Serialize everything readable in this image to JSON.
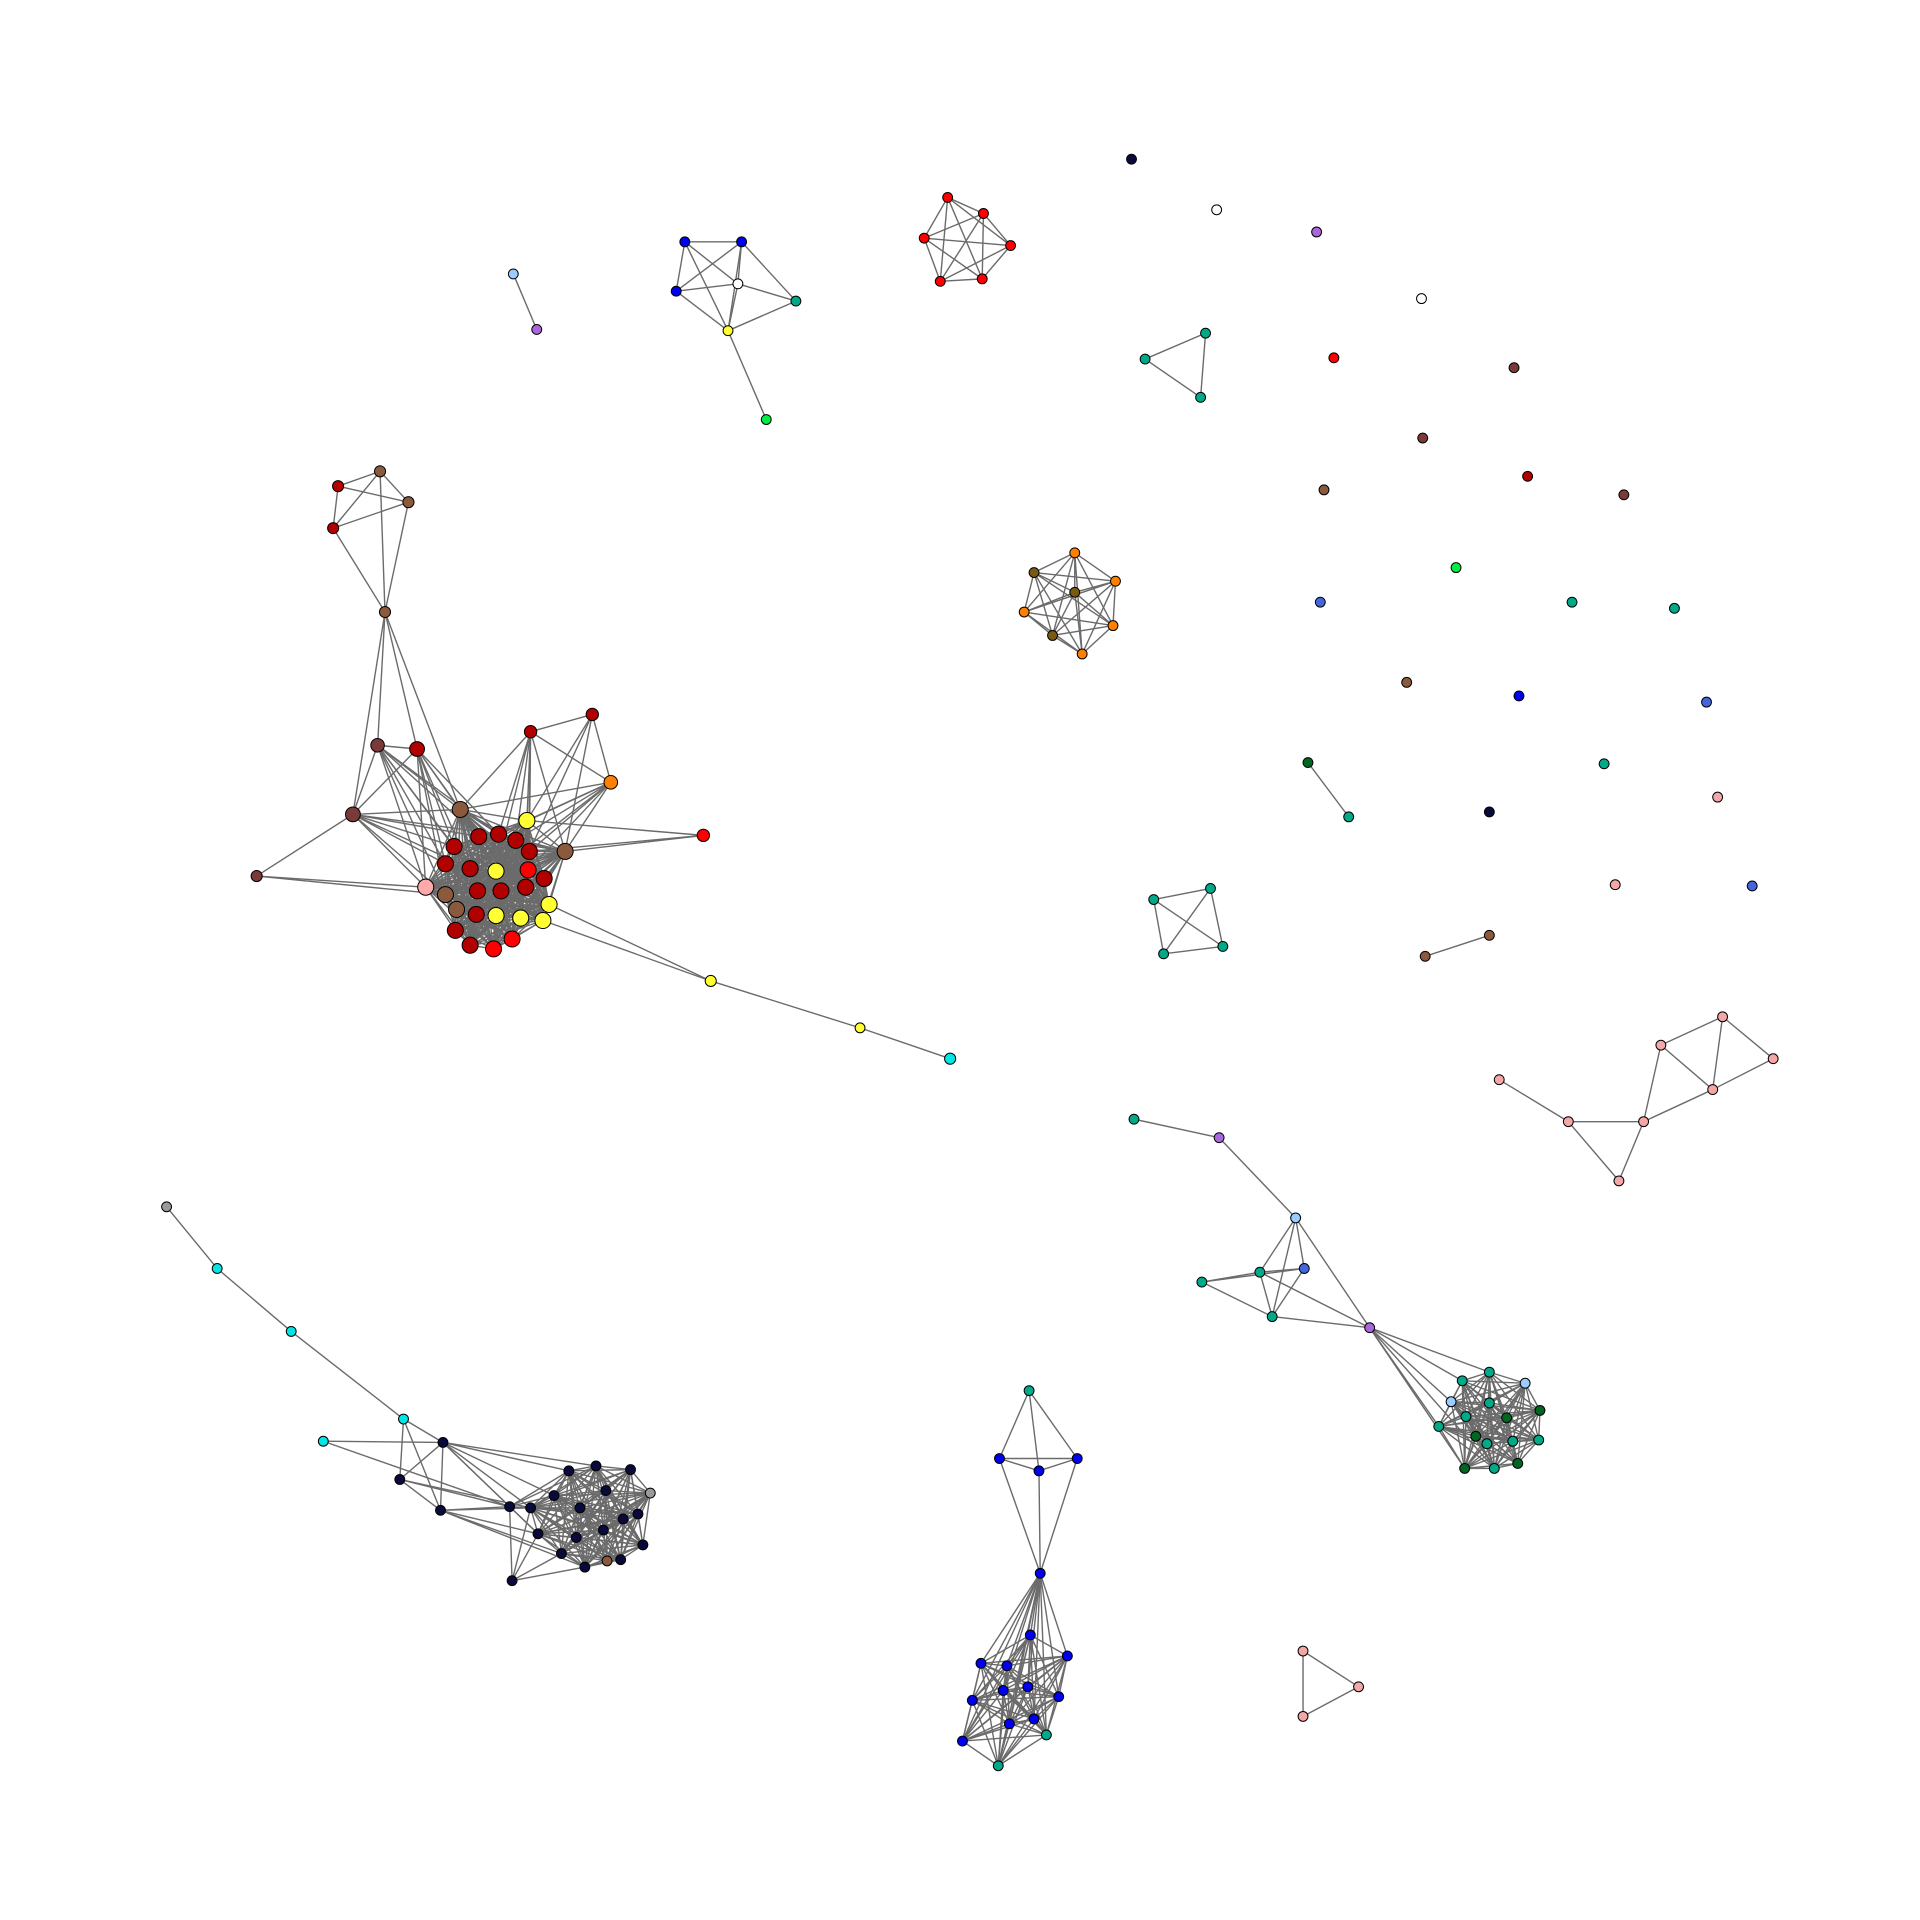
{
  "diagram": {
    "type": "network-graph",
    "labels": "none",
    "colors": {
      "edge": "#6b6b6b",
      "node_border": "#000000",
      "darkred": "#b00000",
      "red": "#ff0000",
      "yellow": "#ffff33",
      "brown": "#8b5a3c",
      "maroon": "#7a3a3a",
      "pink": "#ffaaaa",
      "orange": "#ff8000",
      "olive": "#7a5a10",
      "navy": "#0a0a3a",
      "blue": "#0000ee",
      "royal": "#4466dd",
      "teal": "#00aa88",
      "darkgreen": "#006622",
      "lightblue": "#99ccff",
      "cyan": "#00e5e5",
      "purple": "#aa66dd",
      "green": "#00ee44",
      "gray": "#9a9a9a",
      "white": "#ffffff",
      "lightpink": "#f4a7a7"
    },
    "components": [
      {
        "id": "big-hub-cluster",
        "node_colors": [
          "darkred",
          "red",
          "yellow",
          "brown",
          "maroon",
          "pink",
          "orange",
          "cyan"
        ]
      },
      {
        "id": "navy-cluster",
        "node_colors": [
          "navy",
          "cyan",
          "gray",
          "brown"
        ]
      },
      {
        "id": "blue-cluster",
        "node_colors": [
          "blue",
          "teal"
        ]
      },
      {
        "id": "teal-cluster",
        "node_colors": [
          "teal",
          "darkgreen",
          "lightblue",
          "royal",
          "purple"
        ]
      },
      {
        "id": "pink-chain",
        "node_colors": [
          "lightpink"
        ]
      },
      {
        "id": "orange-hexagon",
        "node_colors": [
          "orange",
          "olive"
        ]
      },
      {
        "id": "red-hexagon",
        "node_colors": [
          "red"
        ]
      },
      {
        "id": "blue-star",
        "node_colors": [
          "blue",
          "white",
          "teal",
          "yellow",
          "green"
        ]
      },
      {
        "id": "small-groups",
        "node_colors": [
          "teal",
          "lightpink",
          "brown",
          "darkgreen",
          "lightblue",
          "purple"
        ]
      },
      {
        "id": "isolated-nodes",
        "node_colors": [
          "navy",
          "white",
          "purple",
          "red",
          "brown",
          "maroon",
          "green",
          "royal",
          "teal",
          "blue",
          "lightpink"
        ]
      }
    ]
  }
}
